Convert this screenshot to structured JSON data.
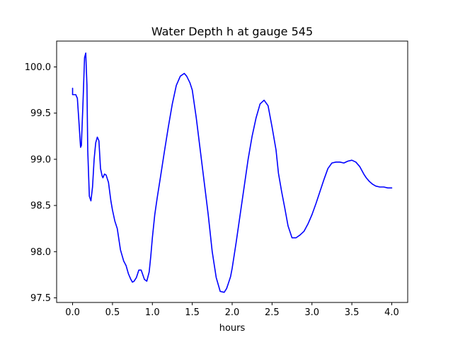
{
  "chart_data": {
    "type": "line",
    "title": "Water Depth h at gauge 545",
    "xlabel": "hours",
    "ylabel": "",
    "xlim": [
      -0.2,
      4.2
    ],
    "ylim": [
      97.45,
      100.28
    ],
    "xticks": [
      0.0,
      0.5,
      1.0,
      1.5,
      2.0,
      2.5,
      3.0,
      3.5,
      4.0
    ],
    "xtick_labels": [
      "0.0",
      "0.5",
      "1.0",
      "1.5",
      "2.0",
      "2.5",
      "3.0",
      "3.5",
      "4.0"
    ],
    "yticks": [
      97.5,
      98.0,
      98.5,
      99.0,
      99.5,
      100.0
    ],
    "ytick_labels": [
      "97.5",
      "98.0",
      "98.5",
      "99.0",
      "99.5",
      "100.0"
    ],
    "grid": false,
    "series": [
      {
        "color": "#0000ff",
        "x": [
          0.0,
          0.0,
          0.02,
          0.04,
          0.06,
          0.08,
          0.1,
          0.11,
          0.13,
          0.15,
          0.165,
          0.18,
          0.19,
          0.21,
          0.23,
          0.25,
          0.27,
          0.29,
          0.31,
          0.33,
          0.35,
          0.37,
          0.38,
          0.4,
          0.42,
          0.45,
          0.48,
          0.5,
          0.53,
          0.56,
          0.6,
          0.64,
          0.67,
          0.7,
          0.73,
          0.75,
          0.77,
          0.8,
          0.83,
          0.86,
          0.88,
          0.9,
          0.93,
          0.96,
          0.98,
          1.0,
          1.03,
          1.06,
          1.1,
          1.15,
          1.2,
          1.25,
          1.3,
          1.35,
          1.4,
          1.43,
          1.47,
          1.5,
          1.55,
          1.6,
          1.65,
          1.7,
          1.75,
          1.8,
          1.85,
          1.9,
          1.93,
          1.95,
          1.98,
          2.0,
          2.05,
          2.1,
          2.15,
          2.2,
          2.25,
          2.3,
          2.35,
          2.4,
          2.45,
          2.5,
          2.55,
          2.58,
          2.62,
          2.66,
          2.7,
          2.75,
          2.8,
          2.85,
          2.9,
          2.95,
          3.0,
          3.05,
          3.1,
          3.15,
          3.2,
          3.25,
          3.3,
          3.35,
          3.4,
          3.45,
          3.5,
          3.55,
          3.6,
          3.65,
          3.68,
          3.72,
          3.76,
          3.8,
          3.85,
          3.9,
          3.95,
          4.0
        ],
        "y": [
          99.77,
          99.7,
          99.7,
          99.7,
          99.66,
          99.4,
          99.13,
          99.15,
          99.6,
          100.1,
          100.15,
          99.8,
          99.1,
          98.6,
          98.55,
          98.7,
          99.0,
          99.18,
          99.24,
          99.2,
          98.9,
          98.82,
          98.8,
          98.84,
          98.83,
          98.75,
          98.55,
          98.45,
          98.33,
          98.25,
          98.02,
          97.9,
          97.85,
          97.76,
          97.7,
          97.67,
          97.68,
          97.72,
          97.8,
          97.8,
          97.75,
          97.7,
          97.68,
          97.78,
          97.95,
          98.15,
          98.4,
          98.58,
          98.8,
          99.08,
          99.35,
          99.6,
          99.8,
          99.9,
          99.93,
          99.9,
          99.83,
          99.75,
          99.45,
          99.1,
          98.75,
          98.4,
          98.0,
          97.72,
          97.57,
          97.56,
          97.6,
          97.65,
          97.73,
          97.82,
          98.1,
          98.4,
          98.7,
          99.0,
          99.25,
          99.45,
          99.6,
          99.64,
          99.58,
          99.35,
          99.1,
          98.85,
          98.65,
          98.47,
          98.28,
          98.15,
          98.15,
          98.18,
          98.22,
          98.3,
          98.4,
          98.52,
          98.65,
          98.78,
          98.9,
          98.96,
          98.97,
          98.97,
          98.96,
          98.98,
          98.99,
          98.97,
          98.92,
          98.84,
          98.8,
          98.76,
          98.73,
          98.71,
          98.7,
          98.7,
          98.69,
          98.69
        ],
        "_note": "x/y are data-unit samples read from the plotted curve"
      }
    ]
  }
}
